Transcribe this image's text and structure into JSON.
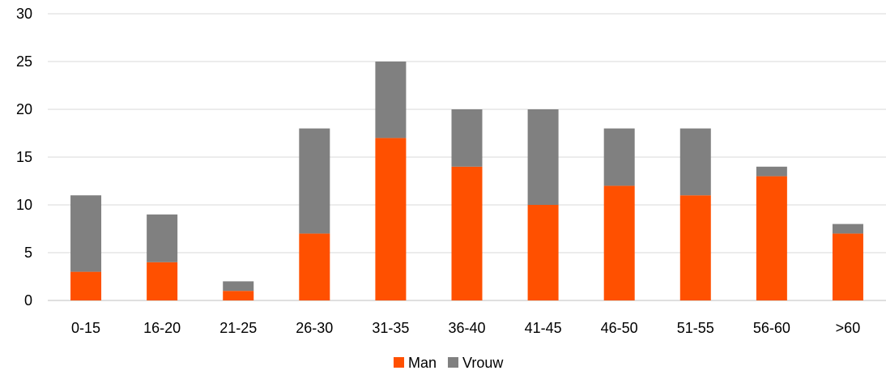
{
  "chart_data": {
    "type": "bar",
    "stacked": true,
    "categories": [
      "0-15",
      "16-20",
      "21-25",
      "26-30",
      "31-35",
      "36-40",
      "41-45",
      "46-50",
      "51-55",
      "56-60",
      ">60"
    ],
    "series": [
      {
        "name": "Man",
        "color": "#FF5000",
        "values": [
          3,
          4,
          1,
          7,
          17,
          14,
          10,
          12,
          11,
          13,
          7
        ]
      },
      {
        "name": "Vrouw",
        "color": "#808080",
        "values": [
          8,
          5,
          1,
          11,
          8,
          6,
          10,
          6,
          7,
          1,
          1
        ]
      }
    ],
    "title": "",
    "xlabel": "",
    "ylabel": "",
    "ylim": [
      0,
      30
    ],
    "yticks": [
      0,
      5,
      10,
      15,
      20,
      25,
      30
    ],
    "grid": true,
    "legend_position": "bottom"
  }
}
